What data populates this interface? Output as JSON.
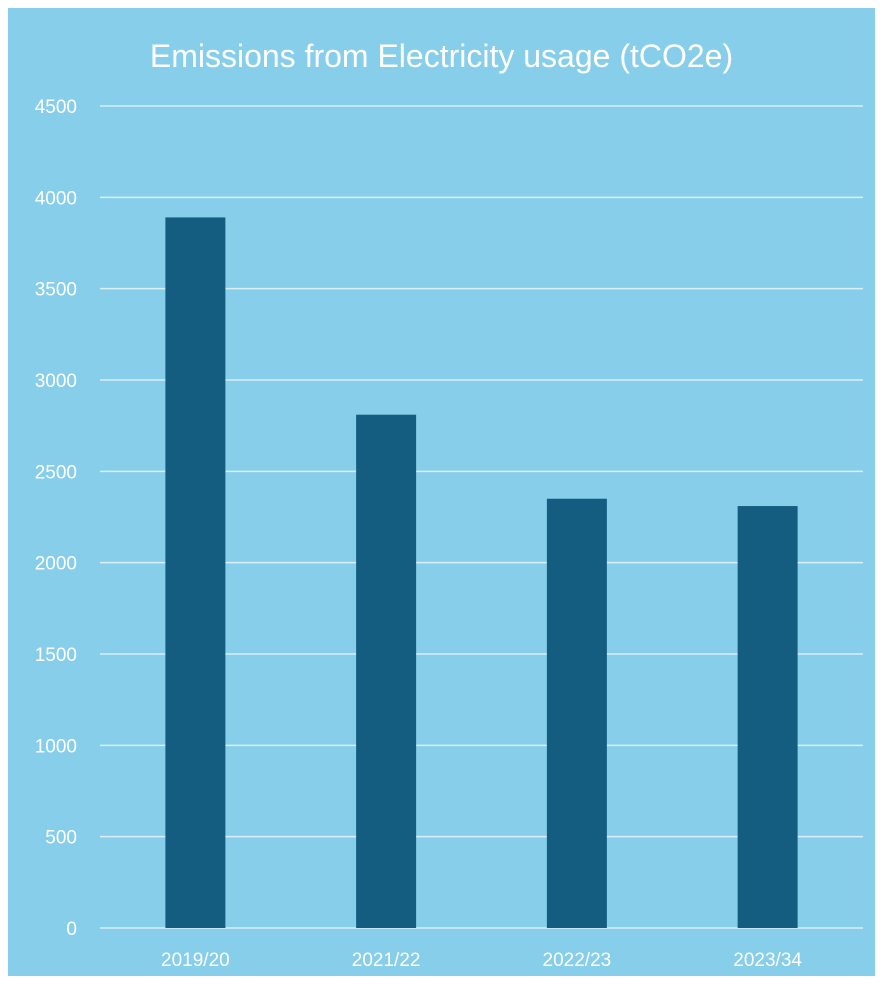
{
  "chart_data": {
    "type": "bar",
    "title": "Emissions from Electricity usage (tCO2e)",
    "categories": [
      "2019/20",
      "2021/22",
      "2022/23",
      "2023/34"
    ],
    "values": [
      3890,
      2810,
      2350,
      2310
    ],
    "ylim": [
      0,
      4500
    ],
    "yticks": [
      0,
      500,
      1000,
      1500,
      2000,
      2500,
      3000,
      3500,
      4000,
      4500
    ],
    "grid": true,
    "legend": "none",
    "colors": {
      "background": "#87ceea",
      "bar": "#155d80",
      "grid": "#d9eef7",
      "text": "#ffffff"
    }
  }
}
